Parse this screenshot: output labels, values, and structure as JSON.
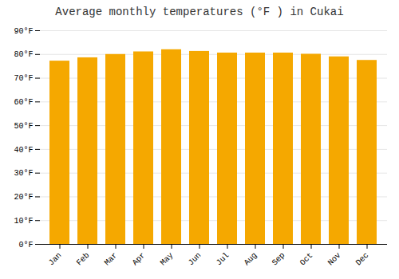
{
  "chart_data": {
    "type": "bar",
    "title": "Average monthly temperatures (°F ) in Cukai",
    "categories": [
      "Jan",
      "Feb",
      "Mar",
      "Apr",
      "May",
      "Jun",
      "Jul",
      "Aug",
      "Sep",
      "Oct",
      "Nov",
      "Dec"
    ],
    "values": [
      77.2,
      78.6,
      80.0,
      81.1,
      82.0,
      81.3,
      80.6,
      80.6,
      80.6,
      80.1,
      79.0,
      77.5
    ],
    "color": "#F5A800",
    "ylim": [
      0,
      90
    ],
    "yticks": [
      {
        "value": 0,
        "label": "0°F"
      },
      {
        "value": 10,
        "label": "10°F"
      },
      {
        "value": 20,
        "label": "20°F"
      },
      {
        "value": 30,
        "label": "30°F"
      },
      {
        "value": 40,
        "label": "40°F"
      },
      {
        "value": 50,
        "label": "50°F"
      },
      {
        "value": 60,
        "label": "60°F"
      },
      {
        "value": 70,
        "label": "70°F"
      },
      {
        "value": 80,
        "label": "80°F"
      },
      {
        "value": 90,
        "label": "90°F"
      }
    ],
    "grid": true
  }
}
